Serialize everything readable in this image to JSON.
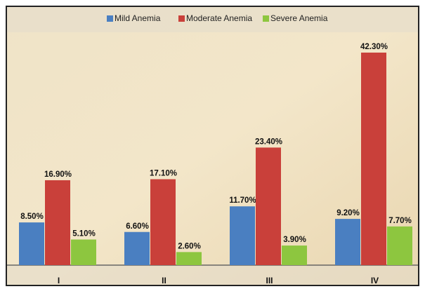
{
  "chart_data": {
    "type": "bar",
    "categories": [
      "I",
      "II",
      "III",
      "IV"
    ],
    "series": [
      {
        "name": "Mild Anemia",
        "color": "#4a7fc1",
        "values": [
          8.5,
          6.6,
          11.7,
          9.2
        ],
        "value_labels": [
          "8.50%",
          "6.60%",
          "11.70%",
          "9.20%"
        ]
      },
      {
        "name": "Moderate Anemia",
        "color": "#c9403a",
        "values": [
          16.9,
          17.1,
          23.4,
          42.3
        ],
        "value_labels": [
          "16.90%",
          "17.10%",
          "23.40%",
          "42.30%"
        ]
      },
      {
        "name": "Severe Anemia",
        "color": "#8dc63f",
        "values": [
          5.1,
          2.6,
          3.9,
          7.7
        ],
        "value_labels": [
          "5.10%",
          "2.60%",
          "3.90%",
          "7.70%"
        ]
      }
    ],
    "legend": "top"
  }
}
